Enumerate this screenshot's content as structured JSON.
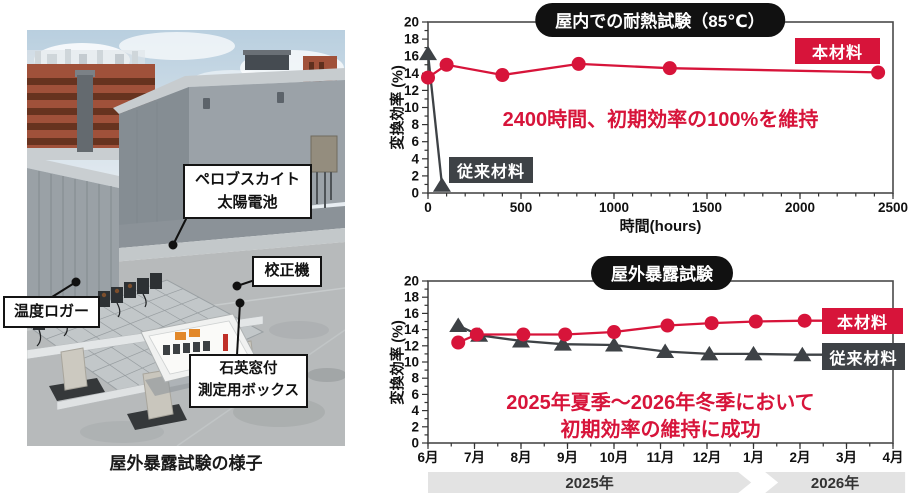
{
  "colors": {
    "accent_red": "#d7143a",
    "dark_gray": "#3e4246",
    "badge_black": "#111111",
    "band_gray": "#e3e3e3"
  },
  "photo": {
    "caption": "屋外暴露試験の様子",
    "labels": {
      "solar_cell_line1": "ペロブスカイト",
      "solar_cell_line2": "太陽電池",
      "calibrator": "校正機",
      "temp_logger": "温度ロガー",
      "measure_box_line1": "石英窓付",
      "measure_box_line2": "測定用ボックス"
    }
  },
  "chart_data": [
    {
      "type": "line",
      "title": "屋内での耐熱試験（85℃）",
      "ylabel": "変換効率 (%)",
      "xlabel": "時間(hours)",
      "xlim": [
        0,
        2500
      ],
      "ylim": [
        0,
        20
      ],
      "xticks": [
        0,
        500,
        1000,
        1500,
        2000,
        2500
      ],
      "ytick_step": 2,
      "grid": false,
      "legend_position": "inside",
      "annotations": [
        "2400時間、初期効率の100%を維持"
      ],
      "series": [
        {
          "name": "従来材料",
          "color": "#3e4246",
          "marker": "triangle",
          "points": [
            [
              0,
              16.3
            ],
            [
              75,
              0.9
            ]
          ]
        },
        {
          "name": "本材料",
          "color": "#d7143a",
          "marker": "circle",
          "points": [
            [
              0,
              13.5
            ],
            [
              100,
              15.0
            ],
            [
              400,
              13.8
            ],
            [
              810,
              15.1
            ],
            [
              1300,
              14.6
            ],
            [
              2420,
              14.1
            ]
          ]
        }
      ]
    },
    {
      "type": "line",
      "title": "屋外暴露試験",
      "ylabel": "変換効率 (%)",
      "xlabel": "",
      "xlim": [
        0,
        10
      ],
      "ylim": [
        0,
        20
      ],
      "xtick_labels": [
        "6月",
        "7月",
        "8月",
        "9月",
        "10月",
        "11月",
        "12月",
        "1月",
        "2月",
        "3月",
        "4月"
      ],
      "ytick_step": 2,
      "grid": false,
      "legend_position": "inside-right",
      "annotations": [
        "2025年夏季～2026年冬季において",
        "初期効率の維持に成功"
      ],
      "year_bands": [
        {
          "label": "2025年",
          "start": 0,
          "end": 6.95,
          "edge": "point-right"
        },
        {
          "label": "2026年",
          "start": 7.25,
          "end": 10.26,
          "edge": "notch-left"
        }
      ],
      "series": [
        {
          "name": "従来材料",
          "color": "#3e4246",
          "marker": "triangle",
          "points": [
            [
              0.65,
              14.5
            ],
            [
              1.1,
              13.3
            ],
            [
              2.0,
              12.6
            ],
            [
              2.9,
              12.2
            ],
            [
              4.0,
              12.1
            ],
            [
              5.1,
              11.3
            ],
            [
              6.05,
              11.0
            ],
            [
              7.0,
              11.0
            ],
            [
              8.05,
              10.9
            ]
          ]
        },
        {
          "name": "本材料",
          "color": "#d7143a",
          "marker": "circle",
          "points": [
            [
              0.65,
              12.4
            ],
            [
              1.05,
              13.4
            ],
            [
              2.05,
              13.4
            ],
            [
              2.95,
              13.4
            ],
            [
              4.0,
              13.7
            ],
            [
              5.15,
              14.5
            ],
            [
              6.1,
              14.8
            ],
            [
              7.05,
              15.0
            ],
            [
              8.1,
              15.1
            ]
          ]
        }
      ]
    }
  ]
}
